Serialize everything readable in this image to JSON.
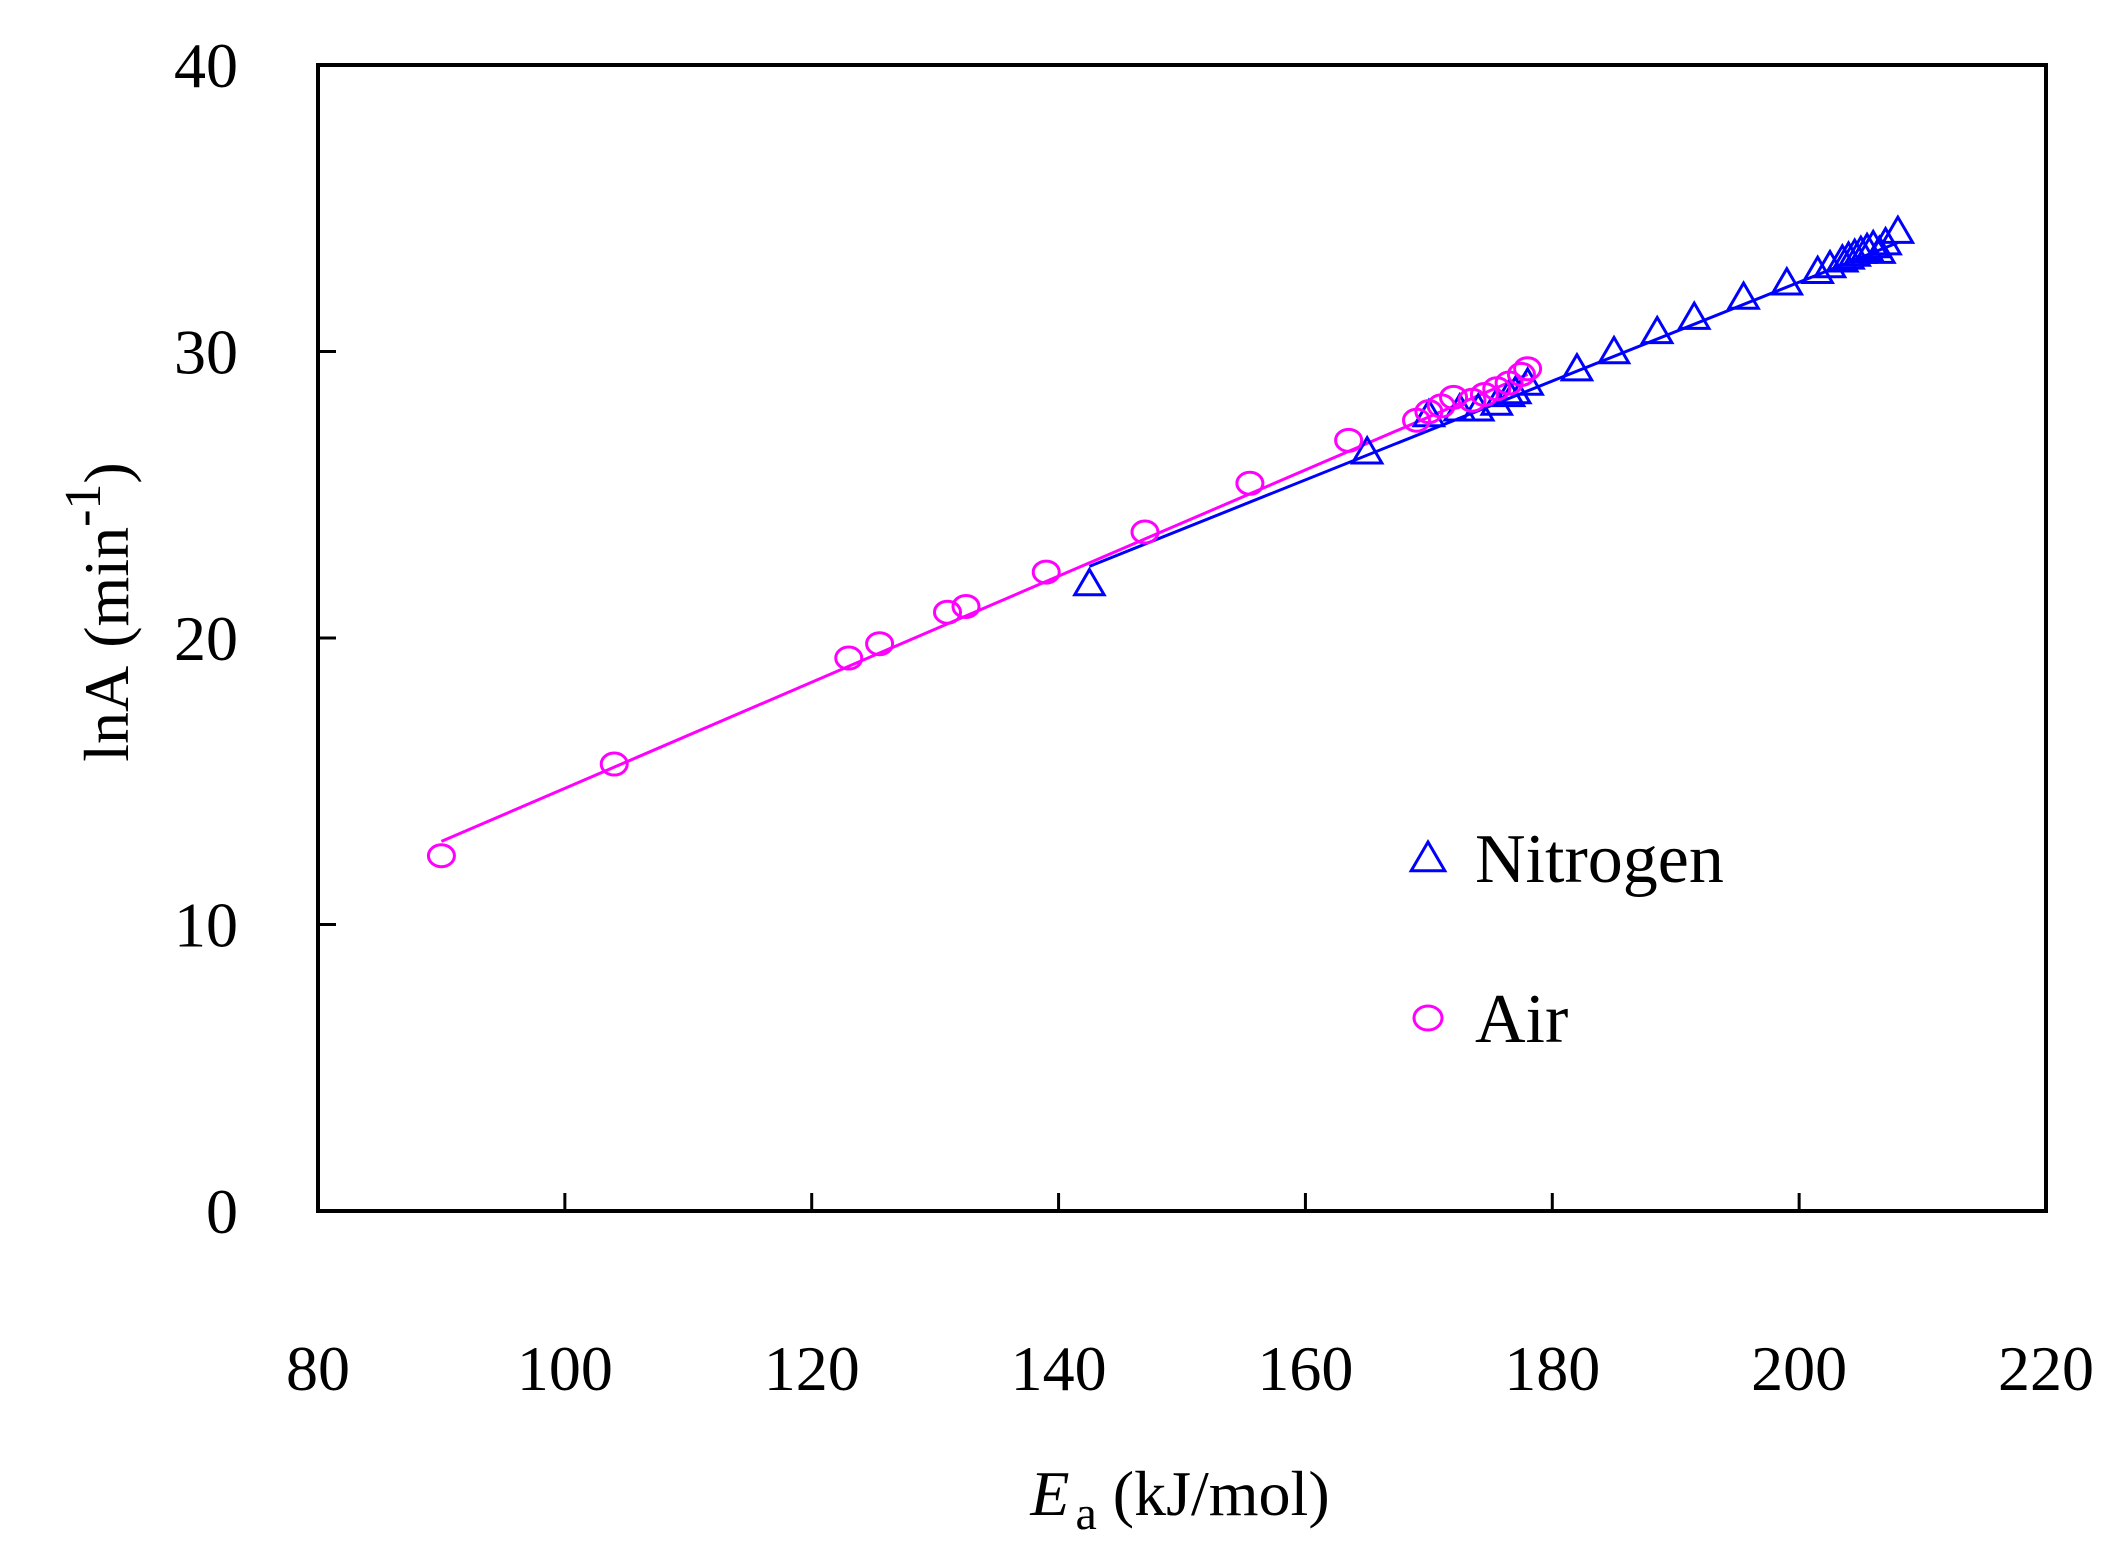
{
  "chart_data": {
    "type": "scatter",
    "xlabel": {
      "symbol": "E",
      "subscript": "a",
      "unit": "(kJ/mol)"
    },
    "ylabel": {
      "text": "lnA",
      "unit_open": "(min",
      "unit_sup": "-1",
      "unit_close": ")"
    },
    "xlim": [
      80,
      220
    ],
    "ylim": [
      0,
      40
    ],
    "x_ticks": [
      80,
      100,
      120,
      140,
      160,
      180,
      200,
      220
    ],
    "y_ticks": [
      0,
      10,
      20,
      30,
      40
    ],
    "grid": false,
    "legend_position": "right-center",
    "series": [
      {
        "name": "Nitrogen",
        "marker": "triangle",
        "color": "#0000ff",
        "fit_line": [
          [
            142.5,
            22.5
          ],
          [
            208.0,
            33.8
          ]
        ],
        "points": [
          [
            142.5,
            21.9
          ],
          [
            165.0,
            26.5
          ],
          [
            170.0,
            27.8
          ],
          [
            172.5,
            28.0
          ],
          [
            174.0,
            28.0
          ],
          [
            175.5,
            28.2
          ],
          [
            176.5,
            28.5
          ],
          [
            177.0,
            28.6
          ],
          [
            178.0,
            28.9
          ],
          [
            182.0,
            29.4
          ],
          [
            185.0,
            30.0
          ],
          [
            188.5,
            30.7
          ],
          [
            191.5,
            31.2
          ],
          [
            195.5,
            31.9
          ],
          [
            199.0,
            32.4
          ],
          [
            201.5,
            32.8
          ],
          [
            202.5,
            33.0
          ],
          [
            203.5,
            33.2
          ],
          [
            204.0,
            33.3
          ],
          [
            204.5,
            33.4
          ],
          [
            205.0,
            33.5
          ],
          [
            205.5,
            33.6
          ],
          [
            206.0,
            33.7
          ],
          [
            206.5,
            33.5
          ],
          [
            207.0,
            33.8
          ],
          [
            208.0,
            34.2
          ]
        ]
      },
      {
        "name": "Air",
        "marker": "circle",
        "color": "#ff00ff",
        "fit_line": [
          [
            90.0,
            12.9
          ],
          [
            178.0,
            29.2
          ]
        ],
        "points": [
          [
            90.0,
            12.4
          ],
          [
            104.0,
            15.6
          ],
          [
            123.0,
            19.3
          ],
          [
            125.5,
            19.8
          ],
          [
            131.0,
            20.9
          ],
          [
            132.5,
            21.1
          ],
          [
            139.0,
            22.3
          ],
          [
            147.0,
            23.7
          ],
          [
            155.5,
            25.4
          ],
          [
            163.5,
            26.9
          ],
          [
            169.0,
            27.6
          ],
          [
            170.0,
            27.9
          ],
          [
            171.0,
            28.1
          ],
          [
            172.0,
            28.4
          ],
          [
            173.5,
            28.3
          ],
          [
            174.5,
            28.5
          ],
          [
            175.5,
            28.7
          ],
          [
            176.5,
            28.9
          ],
          [
            177.5,
            29.2
          ],
          [
            178.0,
            29.4
          ]
        ]
      }
    ]
  }
}
